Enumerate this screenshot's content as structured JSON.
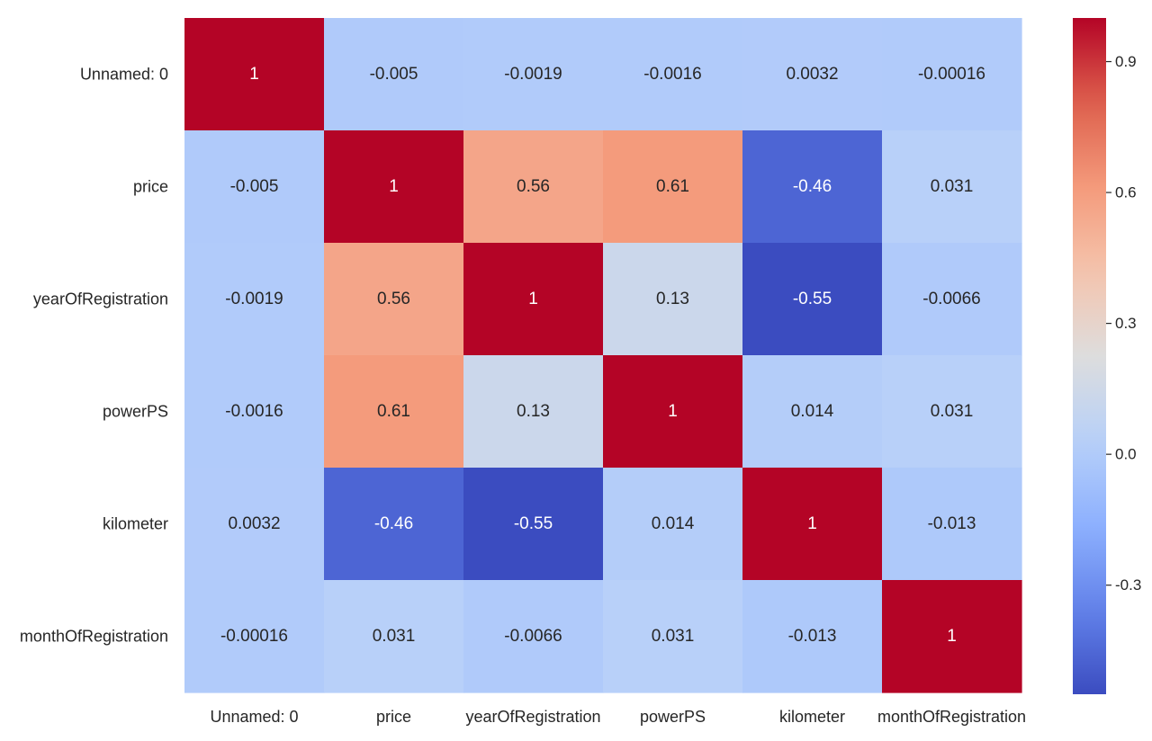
{
  "chart_data": {
    "type": "heatmap",
    "title": "",
    "xlabel": "",
    "ylabel": "",
    "rows": [
      "Unnamed: 0",
      "price",
      "yearOfRegistration",
      "powerPS",
      "kilometer",
      "monthOfRegistration"
    ],
    "columns": [
      "Unnamed: 0",
      "price",
      "yearOfRegistration",
      "powerPS",
      "kilometer",
      "monthOfRegistration"
    ],
    "values": [
      [
        1,
        -0.005,
        -0.0019,
        -0.0016,
        0.0032,
        -0.00016
      ],
      [
        -0.005,
        1,
        0.56,
        0.61,
        -0.46,
        0.031
      ],
      [
        -0.0019,
        0.56,
        1,
        0.13,
        -0.55,
        -0.0066
      ],
      [
        -0.0016,
        0.61,
        0.13,
        1,
        0.014,
        0.031
      ],
      [
        0.0032,
        -0.46,
        -0.55,
        0.014,
        1,
        -0.013
      ],
      [
        -0.00016,
        0.031,
        -0.0066,
        0.031,
        -0.013,
        1
      ]
    ],
    "cell_labels": [
      [
        "1",
        "-0.005",
        "-0.0019",
        "-0.0016",
        "0.0032",
        "-0.00016"
      ],
      [
        "-0.005",
        "1",
        "0.56",
        "0.61",
        "-0.46",
        "0.031"
      ],
      [
        "-0.0019",
        "0.56",
        "1",
        "0.13",
        "-0.55",
        "-0.0066"
      ],
      [
        "-0.0016",
        "0.61",
        "0.13",
        "1",
        "0.014",
        "0.031"
      ],
      [
        "0.0032",
        "-0.46",
        "-0.55",
        "0.014",
        "1",
        "-0.013"
      ],
      [
        "-0.00016",
        "0.031",
        "-0.0066",
        "0.031",
        "-0.013",
        "1"
      ]
    ],
    "colormap": "coolwarm",
    "vmin": -0.55,
    "vmax": 1,
    "colorbar": {
      "ticks": [
        0.9,
        0.6,
        0.3,
        0.0,
        -0.3
      ],
      "tick_labels": [
        "0.9",
        "0.6",
        "0.3",
        "0.0",
        "-0.3"
      ],
      "placement": "right"
    },
    "grid": false
  }
}
